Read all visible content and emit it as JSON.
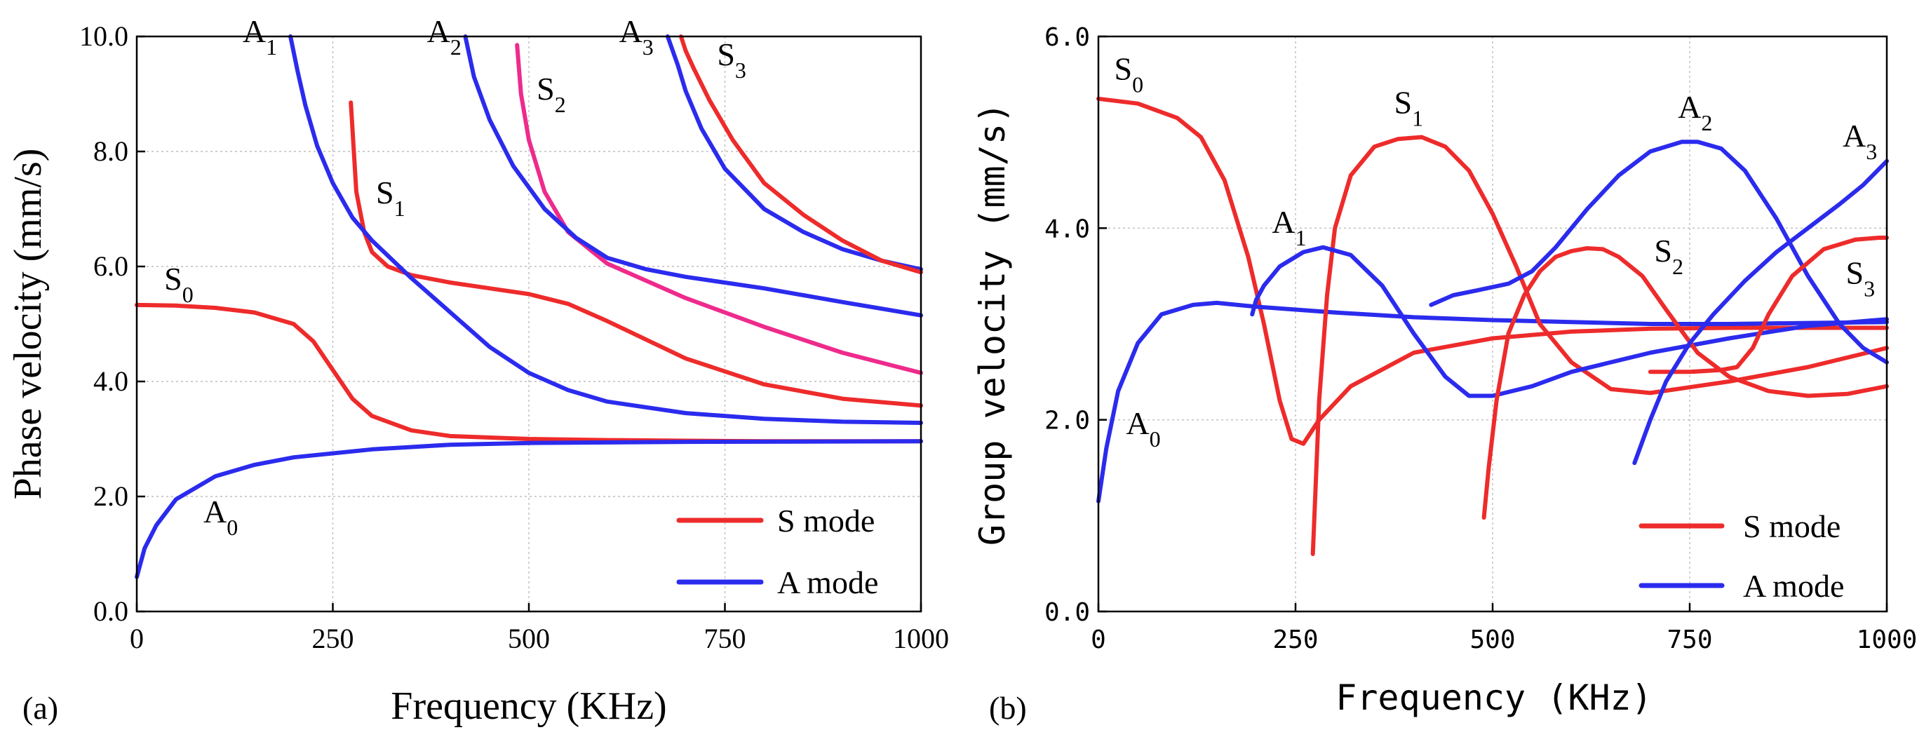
{
  "colors": {
    "s_mode": "#ee2b2b",
    "a_mode": "#2b2bee",
    "s2_phase": "#ee2b8c"
  },
  "chart_data": [
    {
      "type": "line",
      "panel_label": "(a)",
      "xlabel": "Frequency (KHz)",
      "ylabel": "Phase velocity (mm/s)",
      "xlim": [
        0,
        1000
      ],
      "ylim": [
        0,
        10
      ],
      "xticks": [
        {
          "v": 0,
          "t": "0"
        },
        {
          "v": 250,
          "t": "250"
        },
        {
          "v": 500,
          "t": "500"
        },
        {
          "v": 750,
          "t": "750"
        },
        {
          "v": 1000,
          "t": "1000"
        }
      ],
      "yticks": [
        {
          "v": 0,
          "t": "0.0"
        },
        {
          "v": 2,
          "t": "2.0"
        },
        {
          "v": 4,
          "t": "4.0"
        },
        {
          "v": 6,
          "t": "6.0"
        },
        {
          "v": 8,
          "t": "8.0"
        },
        {
          "v": 10,
          "t": "10.0"
        }
      ],
      "grid": true,
      "legend": {
        "position": "bottom-right",
        "entries": [
          {
            "name": "S mode",
            "color": "s_mode"
          },
          {
            "name": "A mode",
            "color": "a_mode"
          }
        ]
      },
      "series": [
        {
          "name": "S0",
          "color": "s_mode",
          "x": [
            0,
            50,
            100,
            150,
            200,
            225,
            250,
            275,
            300,
            350,
            400,
            500,
            600,
            700,
            800,
            900,
            1000
          ],
          "y": [
            5.33,
            5.32,
            5.28,
            5.2,
            5.0,
            4.7,
            4.2,
            3.7,
            3.4,
            3.15,
            3.05,
            3.0,
            2.98,
            2.97,
            2.96,
            2.96,
            2.96
          ]
        },
        {
          "name": "A0",
          "color": "a_mode",
          "x": [
            0,
            10,
            25,
            50,
            100,
            150,
            200,
            300,
            400,
            500,
            700,
            1000
          ],
          "y": [
            0.6,
            1.1,
            1.5,
            1.95,
            2.35,
            2.55,
            2.68,
            2.82,
            2.9,
            2.93,
            2.95,
            2.96
          ]
        },
        {
          "name": "S1",
          "color": "s_mode",
          "x": [
            273,
            280,
            290,
            300,
            320,
            350,
            400,
            450,
            500,
            550,
            600,
            700,
            800,
            900,
            1000
          ],
          "y": [
            8.85,
            7.3,
            6.6,
            6.25,
            6.0,
            5.85,
            5.72,
            5.62,
            5.52,
            5.35,
            5.05,
            4.4,
            3.95,
            3.7,
            3.58
          ]
        },
        {
          "name": "A1",
          "color": "a_mode",
          "x": [
            196,
            205,
            215,
            230,
            250,
            275,
            300,
            350,
            400,
            450,
            500,
            550,
            600,
            700,
            800,
            900,
            1000
          ],
          "y": [
            10.0,
            9.4,
            8.8,
            8.1,
            7.45,
            6.85,
            6.45,
            5.8,
            5.2,
            4.6,
            4.15,
            3.85,
            3.65,
            3.45,
            3.35,
            3.3,
            3.28
          ]
        },
        {
          "name": "S2",
          "color": "s2_phase",
          "x": [
            485,
            490,
            500,
            520,
            550,
            600,
            650,
            700,
            800,
            900,
            1000
          ],
          "y": [
            9.85,
            9.0,
            8.2,
            7.3,
            6.6,
            6.05,
            5.75,
            5.45,
            4.95,
            4.5,
            4.15
          ]
        },
        {
          "name": "A2",
          "color": "a_mode",
          "x": [
            419,
            430,
            450,
            480,
            520,
            560,
            600,
            650,
            700,
            800,
            900,
            1000
          ],
          "y": [
            10.0,
            9.3,
            8.55,
            7.75,
            7.0,
            6.5,
            6.15,
            5.95,
            5.82,
            5.62,
            5.38,
            5.15
          ]
        },
        {
          "name": "A3",
          "color": "a_mode",
          "x": [
            677,
            690,
            700,
            720,
            750,
            800,
            850,
            900,
            950,
            1000
          ],
          "y": [
            10.0,
            9.5,
            9.05,
            8.4,
            7.7,
            7.0,
            6.6,
            6.3,
            6.1,
            5.95
          ]
        },
        {
          "name": "S3",
          "color": "s_mode",
          "x": [
            694,
            700,
            710,
            730,
            760,
            800,
            850,
            900,
            950,
            1000
          ],
          "y": [
            10.0,
            9.75,
            9.45,
            8.9,
            8.2,
            7.45,
            6.9,
            6.45,
            6.1,
            5.9
          ]
        }
      ],
      "mode_labels": [
        {
          "base": "S",
          "sub": "0",
          "x": 35,
          "y": 5.6
        },
        {
          "base": "A",
          "sub": "0",
          "x": 85,
          "y": 1.55
        },
        {
          "base": "S",
          "sub": "1",
          "x": 305,
          "y": 7.1
        },
        {
          "base": "A",
          "sub": "1",
          "x": 135,
          "y": 9.9
        },
        {
          "base": "S",
          "sub": "2",
          "x": 510,
          "y": 8.9
        },
        {
          "base": "A",
          "sub": "2",
          "x": 370,
          "y": 9.9
        },
        {
          "base": "A",
          "sub": "3",
          "x": 615,
          "y": 9.9
        },
        {
          "base": "S",
          "sub": "3",
          "x": 740,
          "y": 9.5
        }
      ]
    },
    {
      "type": "line",
      "panel_label": "(b)",
      "xlabel": "Frequency (KHz)",
      "ylabel": "Group velocity (mm/s)",
      "xlim": [
        0,
        1000
      ],
      "ylim": [
        0,
        6
      ],
      "xticks": [
        {
          "v": 0,
          "t": "0"
        },
        {
          "v": 250,
          "t": "250"
        },
        {
          "v": 500,
          "t": "500"
        },
        {
          "v": 750,
          "t": "750"
        },
        {
          "v": 1000,
          "t": "1000"
        }
      ],
      "yticks": [
        {
          "v": 0,
          "t": "0.0"
        },
        {
          "v": 2,
          "t": "2.0"
        },
        {
          "v": 4,
          "t": "4.0"
        },
        {
          "v": 6,
          "t": "6.0"
        }
      ],
      "grid": true,
      "legend": {
        "position": "bottom-right",
        "entries": [
          {
            "name": "S mode",
            "color": "s_mode"
          },
          {
            "name": "A mode",
            "color": "a_mode"
          }
        ]
      },
      "series": [
        {
          "name": "S0",
          "color": "s_mode",
          "x": [
            0,
            50,
            100,
            130,
            160,
            190,
            210,
            230,
            245,
            260,
            280,
            320,
            400,
            500,
            600,
            700,
            800,
            900,
            1000
          ],
          "y": [
            5.35,
            5.3,
            5.15,
            4.95,
            4.5,
            3.7,
            3.0,
            2.2,
            1.8,
            1.75,
            2.0,
            2.35,
            2.7,
            2.85,
            2.92,
            2.95,
            2.96,
            2.96,
            2.96
          ]
        },
        {
          "name": "A0",
          "color": "a_mode",
          "x": [
            0,
            10,
            25,
            50,
            80,
            120,
            150,
            200,
            300,
            400,
            500,
            600,
            700,
            800,
            900,
            1000
          ],
          "y": [
            1.15,
            1.7,
            2.3,
            2.8,
            3.1,
            3.2,
            3.22,
            3.18,
            3.12,
            3.07,
            3.04,
            3.02,
            3.0,
            3.0,
            3.01,
            3.02
          ]
        },
        {
          "name": "S1",
          "color": "s_mode",
          "x": [
            272,
            275,
            280,
            290,
            300,
            320,
            350,
            380,
            410,
            440,
            470,
            500,
            530,
            560,
            600,
            650,
            700,
            800,
            900,
            1000
          ],
          "y": [
            0.6,
            1.2,
            2.2,
            3.3,
            4.0,
            4.55,
            4.85,
            4.93,
            4.95,
            4.85,
            4.6,
            4.15,
            3.6,
            3.0,
            2.6,
            2.32,
            2.28,
            2.4,
            2.55,
            2.75
          ]
        },
        {
          "name": "A1",
          "color": "a_mode",
          "x": [
            195,
            200,
            210,
            230,
            260,
            285,
            320,
            360,
            400,
            440,
            470,
            500,
            550,
            600,
            700,
            800,
            900,
            1000
          ],
          "y": [
            3.1,
            3.25,
            3.4,
            3.6,
            3.75,
            3.8,
            3.72,
            3.4,
            2.9,
            2.45,
            2.25,
            2.25,
            2.35,
            2.5,
            2.7,
            2.85,
            2.98,
            3.05
          ]
        },
        {
          "name": "S2",
          "color": "s_mode",
          "x": [
            489,
            495,
            505,
            520,
            540,
            560,
            580,
            600,
            620,
            640,
            660,
            690,
            720,
            760,
            800,
            850,
            900,
            950,
            1000
          ],
          "y": [
            0.98,
            1.5,
            2.2,
            2.9,
            3.3,
            3.55,
            3.7,
            3.76,
            3.79,
            3.78,
            3.7,
            3.5,
            3.15,
            2.7,
            2.45,
            2.3,
            2.25,
            2.27,
            2.35
          ]
        },
        {
          "name": "A2",
          "color": "a_mode",
          "x": [
            422,
            450,
            480,
            520,
            550,
            580,
            620,
            660,
            700,
            740,
            760,
            790,
            820,
            860,
            900,
            940,
            970,
            1000
          ],
          "y": [
            3.2,
            3.3,
            3.35,
            3.42,
            3.55,
            3.8,
            4.2,
            4.55,
            4.8,
            4.9,
            4.9,
            4.83,
            4.6,
            4.1,
            3.5,
            3.0,
            2.75,
            2.6
          ]
        },
        {
          "name": "S3",
          "color": "s_mode",
          "x": [
            700,
            750,
            790,
            810,
            830,
            850,
            880,
            920,
            960,
            990,
            1000
          ],
          "y": [
            2.5,
            2.5,
            2.52,
            2.55,
            2.75,
            3.1,
            3.5,
            3.78,
            3.88,
            3.9,
            3.9
          ]
        },
        {
          "name": "A3",
          "color": "a_mode",
          "x": [
            680,
            700,
            720,
            750,
            780,
            820,
            860,
            900,
            940,
            970,
            1000
          ],
          "y": [
            1.55,
            2.0,
            2.4,
            2.8,
            3.1,
            3.45,
            3.75,
            4.0,
            4.25,
            4.45,
            4.7
          ]
        }
      ],
      "mode_labels": [
        {
          "base": "S",
          "sub": "0",
          "x": 20,
          "y": 5.55
        },
        {
          "base": "A",
          "sub": "0",
          "x": 35,
          "y": 1.85
        },
        {
          "base": "S",
          "sub": "1",
          "x": 375,
          "y": 5.2
        },
        {
          "base": "A",
          "sub": "1",
          "x": 220,
          "y": 3.95
        },
        {
          "base": "S",
          "sub": "2",
          "x": 705,
          "y": 3.65
        },
        {
          "base": "A",
          "sub": "2",
          "x": 735,
          "y": 5.15
        },
        {
          "base": "A",
          "sub": "3",
          "x": 944,
          "y": 4.85
        },
        {
          "base": "S",
          "sub": "3",
          "x": 948,
          "y": 3.42
        }
      ]
    }
  ]
}
